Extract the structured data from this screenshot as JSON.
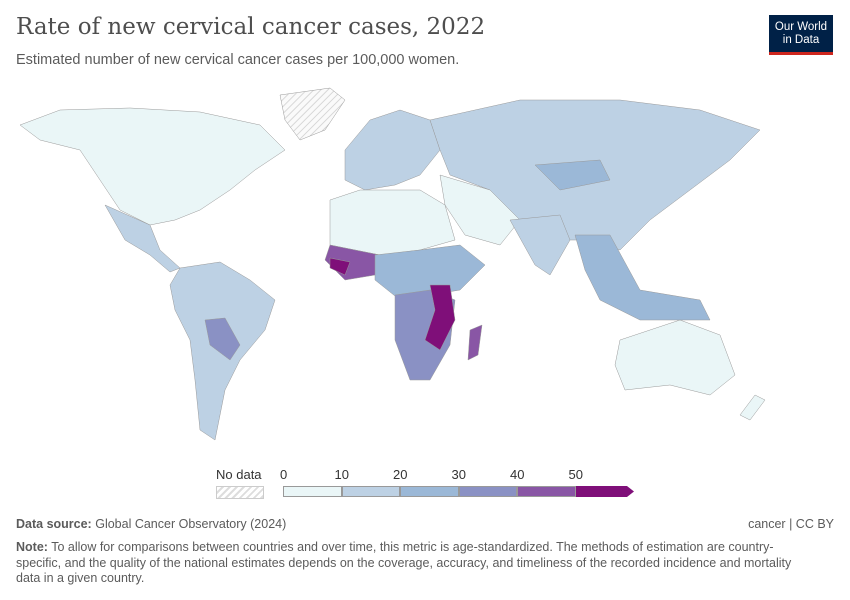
{
  "header": {
    "title": "Rate of new cervical cancer cases, 2022",
    "subtitle": "Estimated number of new cervical cancer cases per 100,000 women.",
    "logo": "Our World in Data"
  },
  "chart_data": {
    "type": "choropleth-map",
    "title": "Rate of new cervical cancer cases, 2022",
    "subtitle": "Estimated number of new cervical cancer cases per 100,000 women.",
    "legend": {
      "no_data_label": "No data",
      "ticks": [
        "0",
        "10",
        "20",
        "30",
        "40",
        "50"
      ],
      "bins": [
        {
          "min": 0,
          "max": 10,
          "color": "#eaf6f7"
        },
        {
          "min": 10,
          "max": 20,
          "color": "#bdd1e4"
        },
        {
          "min": 20,
          "max": 30,
          "color": "#9bb8d7"
        },
        {
          "min": 30,
          "max": 40,
          "color": "#8a91c4"
        },
        {
          "min": 40,
          "max": 50,
          "color": "#8956a5"
        },
        {
          "min": 50,
          "max": null,
          "color": "#7f0f79"
        }
      ]
    }
  },
  "footer": {
    "source_label": "Data source:",
    "source": "Global Cancer Observatory (2024)",
    "license": "cancer | CC BY",
    "note_label": "Note:",
    "note": "To allow for comparisons between countries and over time, this metric is age-standardized. The methods of estimation are country-specific, and the quality of the national estimates depends on the coverage, accuracy, and timeliness of the recorded incidence and mortality data in a given country."
  }
}
